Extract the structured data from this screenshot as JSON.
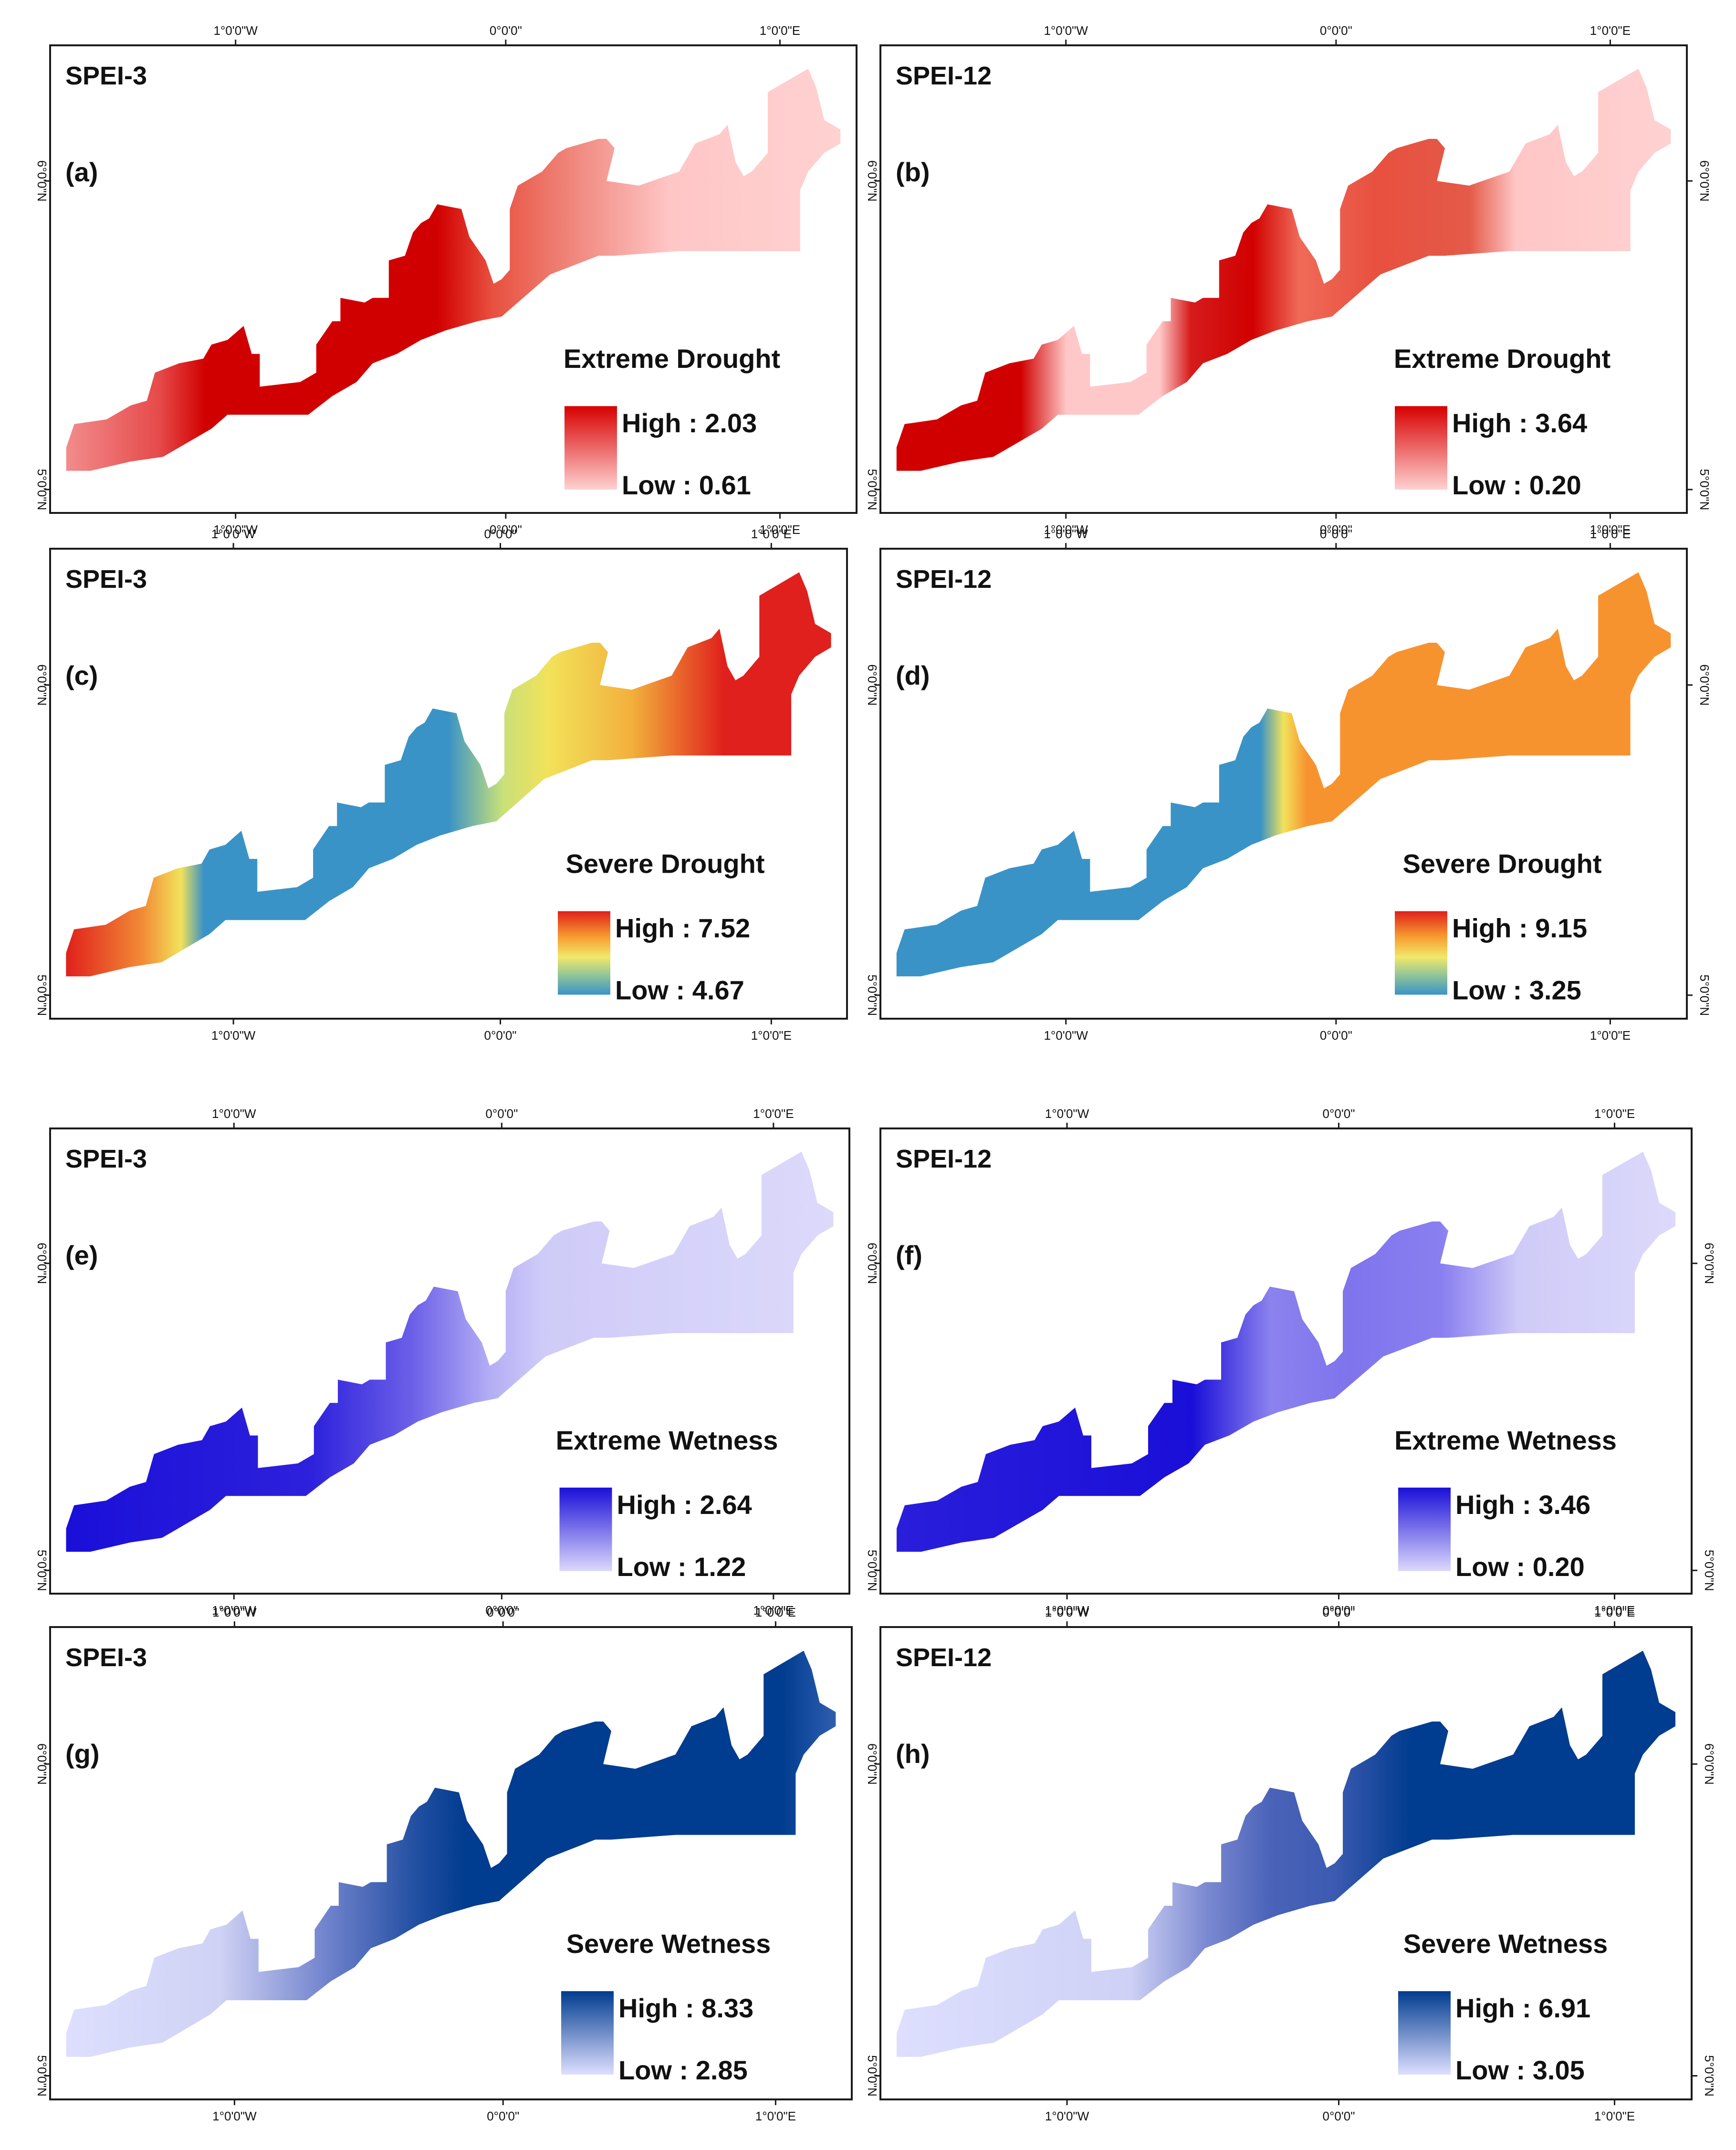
{
  "figure": {
    "axis_labels": {
      "lon_west": "1°0'0\"W",
      "lon_zero": "0°0'0\"",
      "lon_east": "1°0'0\"E",
      "lat_6": "6°0'0\"N",
      "lat_5": "5°0'0\"N"
    },
    "panels": [
      {
        "index": "(a)",
        "index_title": "SPEI-3",
        "category": "Extreme Drought",
        "high": "High : 2.03",
        "low": "Low : 0.61",
        "high_color": "#d10000",
        "low_color": "#ffd1d1",
        "palette": "red"
      },
      {
        "index": "(b)",
        "index_title": "SPEI-12",
        "category": "Extreme Drought",
        "high": "High : 3.64",
        "low": "Low : 0.20",
        "high_color": "#d10000",
        "low_color": "#ffd1d1",
        "palette": "red"
      },
      {
        "index": "(c)",
        "index_title": "SPEI-3",
        "category": "Severe Drought",
        "high": "High : 7.52",
        "low": "Low : 4.67",
        "high_color": "#e0201c",
        "low_color": "#3a93c6",
        "palette": "spectral"
      },
      {
        "index": "(d)",
        "index_title": "SPEI-12",
        "category": "Severe Drought",
        "high": "High : 9.15",
        "low": "Low : 3.25",
        "high_color": "#e0201c",
        "low_color": "#3a93c6",
        "palette": "spectral"
      },
      {
        "index": "(e)",
        "index_title": "SPEI-3",
        "category": "Extreme Wetness",
        "high": "High : 2.64",
        "low": "Low : 1.22",
        "high_color": "#1a0fd8",
        "low_color": "#dcd9fb",
        "palette": "violet"
      },
      {
        "index": "(f)",
        "index_title": "SPEI-12",
        "category": "Extreme Wetness",
        "high": "High : 3.46",
        "low": "Low : 0.20",
        "high_color": "#1a0fd8",
        "low_color": "#dcd9fb",
        "palette": "violet"
      },
      {
        "index": "(g)",
        "index_title": "SPEI-3",
        "category": "Severe Wetness",
        "high": "High : 8.33",
        "low": "Low : 2.85",
        "high_color": "#003c8f",
        "low_color": "#dedfff",
        "palette": "navy"
      },
      {
        "index": "(h)",
        "index_title": "SPEI-12",
        "category": "Severe Wetness",
        "high": "High : 6.91",
        "low": "Low : 3.05",
        "high_color": "#003c8f",
        "low_color": "#dedfff",
        "palette": "navy"
      }
    ]
  }
}
